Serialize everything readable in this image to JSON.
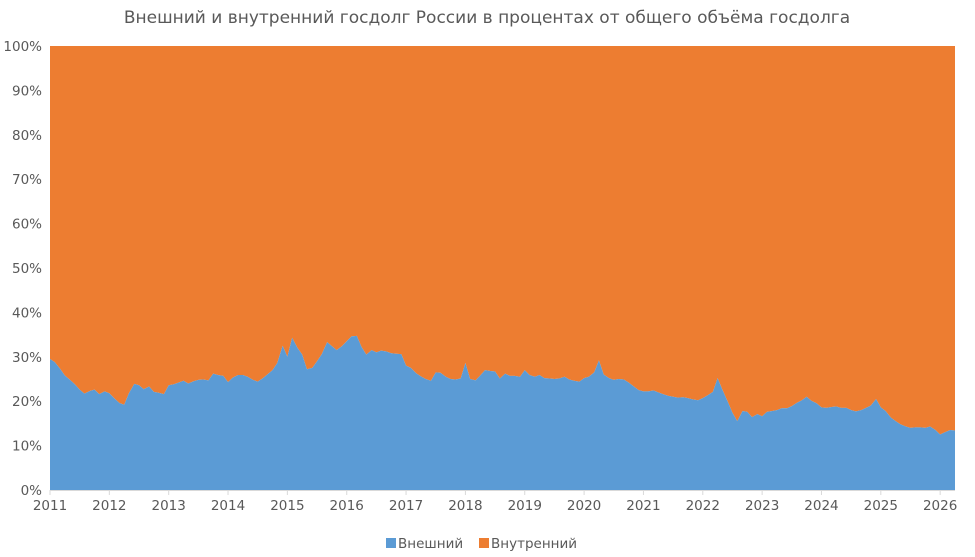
{
  "chart_data": {
    "type": "area",
    "stacked": "percent",
    "title": "Внешний и внутренний госдолг России в процентах от общего объёма госдолга",
    "xlabel": "",
    "ylabel": "",
    "xlim": [
      2011,
      2026.25
    ],
    "ylim": [
      0,
      100
    ],
    "y_ticks": [
      "0%",
      "10%",
      "20%",
      "30%",
      "40%",
      "50%",
      "60%",
      "70%",
      "80%",
      "90%",
      "100%"
    ],
    "x_ticks": [
      "2011",
      "2012",
      "2013",
      "2014",
      "2015",
      "2016",
      "2017",
      "2018",
      "2019",
      "2020",
      "2021",
      "2022",
      "2023",
      "2024",
      "2025",
      "2026"
    ],
    "legend_position": "bottom",
    "grid": false,
    "colors": {
      "external": "#5b9bd5",
      "internal": "#ed7d31"
    },
    "x": [
      2011.0,
      2011.08,
      2011.17,
      2011.25,
      2011.33,
      2011.42,
      2011.5,
      2011.58,
      2011.67,
      2011.75,
      2011.83,
      2011.92,
      2012.0,
      2012.08,
      2012.17,
      2012.25,
      2012.33,
      2012.42,
      2012.5,
      2012.58,
      2012.67,
      2012.75,
      2012.83,
      2012.92,
      2013.0,
      2013.08,
      2013.17,
      2013.25,
      2013.33,
      2013.42,
      2013.5,
      2013.58,
      2013.67,
      2013.75,
      2013.83,
      2013.92,
      2014.0,
      2014.08,
      2014.17,
      2014.25,
      2014.33,
      2014.42,
      2014.5,
      2014.58,
      2014.67,
      2014.75,
      2014.83,
      2014.92,
      2015.0,
      2015.08,
      2015.17,
      2015.25,
      2015.33,
      2015.42,
      2015.5,
      2015.58,
      2015.67,
      2015.75,
      2015.83,
      2015.92,
      2016.0,
      2016.08,
      2016.17,
      2016.25,
      2016.33,
      2016.42,
      2016.5,
      2016.58,
      2016.67,
      2016.75,
      2016.83,
      2016.92,
      2017.0,
      2017.08,
      2017.17,
      2017.25,
      2017.33,
      2017.42,
      2017.5,
      2017.58,
      2017.67,
      2017.75,
      2017.83,
      2017.92,
      2018.0,
      2018.08,
      2018.17,
      2018.25,
      2018.33,
      2018.42,
      2018.5,
      2018.58,
      2018.67,
      2018.75,
      2018.83,
      2018.92,
      2019.0,
      2019.08,
      2019.17,
      2019.25,
      2019.33,
      2019.42,
      2019.5,
      2019.58,
      2019.67,
      2019.75,
      2019.83,
      2019.92,
      2020.0,
      2020.08,
      2020.17,
      2020.25,
      2020.33,
      2020.42,
      2020.5,
      2020.58,
      2020.67,
      2020.75,
      2020.83,
      2020.92,
      2021.0,
      2021.08,
      2021.17,
      2021.25,
      2021.33,
      2021.42,
      2021.5,
      2021.58,
      2021.67,
      2021.75,
      2021.83,
      2021.92,
      2022.0,
      2022.08,
      2022.17,
      2022.25,
      2022.33,
      2022.42,
      2022.5,
      2022.58,
      2022.67,
      2022.75,
      2022.83,
      2022.92,
      2023.0,
      2023.08,
      2023.17,
      2023.25,
      2023.33,
      2023.42,
      2023.5,
      2023.58,
      2023.67,
      2023.75,
      2023.83,
      2023.92,
      2024.0,
      2024.08,
      2024.17,
      2024.25,
      2024.33,
      2024.42,
      2024.5,
      2024.58,
      2024.67,
      2024.75,
      2024.83,
      2024.92,
      2025.0,
      2025.08,
      2025.17,
      2025.25,
      2025.33,
      2025.42,
      2025.5,
      2025.58,
      2025.67,
      2025.75,
      2025.83,
      2025.92,
      2026.0,
      2026.08,
      2026.17,
      2026.25
    ],
    "series": [
      {
        "name": "Внешний",
        "values": [
          29.5,
          28.8,
          27.3,
          25.8,
          24.9,
          23.8,
          22.6,
          21.7,
          22.3,
          22.6,
          21.6,
          22.2,
          21.8,
          20.7,
          19.6,
          19.2,
          21.8,
          23.9,
          23.6,
          22.7,
          23.3,
          22.1,
          21.9,
          21.6,
          23.6,
          23.8,
          24.2,
          24.6,
          24.0,
          24.5,
          24.8,
          24.9,
          24.7,
          26.2,
          25.9,
          25.7,
          24.3,
          25.3,
          25.9,
          25.9,
          25.5,
          24.8,
          24.4,
          25.1,
          26.1,
          27.0,
          28.6,
          32.5,
          30.0,
          34.3,
          32.0,
          30.5,
          27.2,
          27.5,
          29.0,
          30.6,
          33.3,
          32.4,
          31.5,
          32.4,
          33.5,
          34.6,
          34.7,
          32.2,
          30.5,
          31.5,
          31.0,
          31.4,
          31.2,
          30.8,
          30.7,
          30.6,
          28.0,
          27.5,
          26.3,
          25.6,
          25.0,
          24.6,
          26.5,
          26.4,
          25.5,
          25.0,
          24.9,
          25.1,
          28.6,
          25.0,
          24.7,
          25.8,
          27.0,
          26.8,
          26.7,
          25.1,
          26.2,
          25.7,
          25.7,
          25.5,
          27.0,
          25.9,
          25.5,
          25.9,
          25.2,
          25.1,
          25.0,
          25.1,
          25.5,
          24.9,
          24.6,
          24.4,
          25.2,
          25.5,
          26.5,
          29.2,
          26.0,
          25.2,
          24.8,
          25.0,
          24.9,
          24.2,
          23.4,
          22.5,
          22.2,
          22.2,
          22.4,
          22.0,
          21.6,
          21.2,
          21.0,
          20.8,
          20.9,
          20.7,
          20.4,
          20.2,
          20.7,
          21.3,
          22.1,
          25.2,
          22.6,
          19.9,
          17.4,
          15.5,
          17.8,
          17.6,
          16.4,
          17.1,
          16.6,
          17.6,
          17.8,
          18.0,
          18.4,
          18.4,
          18.9,
          19.6,
          20.2,
          21.0,
          20.1,
          19.5,
          18.6,
          18.5,
          18.7,
          18.8,
          18.5,
          18.5,
          18.0,
          17.7,
          18.0,
          18.5,
          19.0,
          20.5,
          18.6,
          17.8,
          16.3,
          15.5,
          14.8,
          14.3,
          14.0,
          14.1,
          14.1,
          14.0,
          14.3,
          13.5,
          12.5,
          13.0,
          13.5,
          13.4
        ]
      },
      {
        "name": "Внутренний",
        "values": [
          70.5,
          71.2,
          72.7,
          74.2,
          75.1,
          76.2,
          77.4,
          78.3,
          77.7,
          77.4,
          78.4,
          77.8,
          78.2,
          79.3,
          80.4,
          80.8,
          78.2,
          76.1,
          76.4,
          77.3,
          76.7,
          77.9,
          78.1,
          78.4,
          76.4,
          76.2,
          75.8,
          75.4,
          76.0,
          75.5,
          75.2,
          75.1,
          75.3,
          73.8,
          74.1,
          74.3,
          75.7,
          74.7,
          74.1,
          74.1,
          74.5,
          75.2,
          75.6,
          74.9,
          73.9,
          73.0,
          71.4,
          67.5,
          70.0,
          65.7,
          68.0,
          69.5,
          72.8,
          72.5,
          71.0,
          69.4,
          66.7,
          67.6,
          68.5,
          67.6,
          66.5,
          65.4,
          65.3,
          67.8,
          69.5,
          68.5,
          69.0,
          68.6,
          68.8,
          69.2,
          69.3,
          69.4,
          72.0,
          72.5,
          73.7,
          74.4,
          75.0,
          75.4,
          73.5,
          73.6,
          74.5,
          75.0,
          75.1,
          74.9,
          71.4,
          75.0,
          75.3,
          74.2,
          73.0,
          73.2,
          73.3,
          74.9,
          73.8,
          74.3,
          74.3,
          74.5,
          73.0,
          74.1,
          74.5,
          74.1,
          74.8,
          74.9,
          75.0,
          74.9,
          74.5,
          75.1,
          75.4,
          75.6,
          74.8,
          74.5,
          73.5,
          70.8,
          74.0,
          74.8,
          75.2,
          75.0,
          75.1,
          75.8,
          76.6,
          77.5,
          77.8,
          77.8,
          77.6,
          78.0,
          78.4,
          78.8,
          79.0,
          79.2,
          79.1,
          79.3,
          79.6,
          79.8,
          79.3,
          78.7,
          77.9,
          74.8,
          77.4,
          80.1,
          82.6,
          84.5,
          82.2,
          82.4,
          83.6,
          82.9,
          83.4,
          82.4,
          82.2,
          82.0,
          81.6,
          81.6,
          81.1,
          80.4,
          79.8,
          79.0,
          79.9,
          80.5,
          81.4,
          81.5,
          81.3,
          81.2,
          81.5,
          81.5,
          82.0,
          82.3,
          82.0,
          81.5,
          81.0,
          79.5,
          81.4,
          82.2,
          83.7,
          84.5,
          85.2,
          85.7,
          86.0,
          85.9,
          85.9,
          86.0,
          85.7,
          86.5,
          87.5,
          87.0,
          86.5,
          86.6
        ]
      }
    ]
  }
}
